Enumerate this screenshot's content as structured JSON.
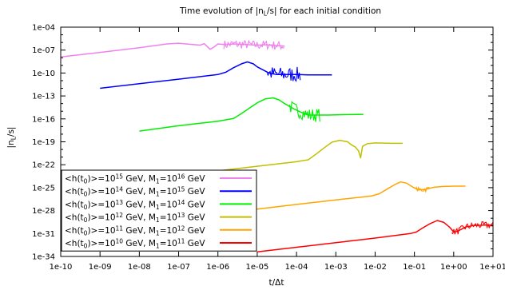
{
  "chart_data": {
    "type": "line",
    "title": "Time evolution of |n_L/s| for each initial condition",
    "title_main": "Time evolution of |n",
    "title_sub": "L",
    "title_rest": "/s| for each initial condition",
    "xlabel": "t/Δt",
    "ylabel_main": "|n",
    "ylabel_sub": "L",
    "ylabel_rest": "/s|",
    "x_scale": "log",
    "y_scale": "log",
    "xlim": [
      1e-10,
      10
    ],
    "ylim": [
      1e-34,
      0.0001
    ],
    "grid": false,
    "legend_position": "bottom-left",
    "x_tick_labels": [
      "1e-10",
      "1e-09",
      "1e-08",
      "1e-07",
      "1e-06",
      "1e-05",
      "1e-04",
      "1e-03",
      "1e-02",
      "1e-01",
      "1e+00",
      "1e+01"
    ],
    "y_tick_labels": [
      "1e-34",
      "1e-31",
      "1e-28",
      "1e-25",
      "1e-22",
      "1e-19",
      "1e-16",
      "1e-13",
      "1e-10",
      "1e-07",
      "1e-04"
    ],
    "series": [
      {
        "legend_parts": [
          "<h(t",
          "0",
          ")>=10",
          "15",
          " GeV, M",
          "1",
          "=10",
          "16",
          " GeV"
        ],
        "color": "#ee82ee",
        "points": [
          [
            -10,
            -7.9
          ],
          [
            -9,
            -7.3
          ],
          [
            -8,
            -6.7
          ],
          [
            -7.3,
            -6.2
          ],
          [
            -7,
            -6.1
          ],
          [
            -6.7,
            -6.25
          ],
          [
            -6.45,
            -6.35
          ],
          [
            -6.35,
            -6.15
          ],
          [
            -6.2,
            -6.9
          ],
          [
            -6.1,
            -6.6
          ],
          [
            -6,
            -6.2
          ],
          [
            -5.8,
            -6.3
          ],
          [
            -5.6,
            -6.2
          ],
          [
            -5.4,
            -6.25
          ],
          [
            -5.2,
            -6.3
          ],
          [
            -5.0,
            -6.35
          ],
          [
            -4.8,
            -6.3
          ],
          [
            -4.6,
            -6.35
          ],
          [
            -4.4,
            -6.45
          ],
          [
            -4.3,
            -6.5
          ]
        ],
        "noise": {
          "start": -5.85,
          "end": -4.3,
          "amplitude": 0.6
        }
      },
      {
        "legend_parts": [
          "<h(t",
          "0",
          ")>=10",
          "14",
          " GeV, M",
          "1",
          "=10",
          "15",
          " GeV"
        ],
        "color": "#0000ff",
        "points": [
          [
            -9,
            -12.0
          ],
          [
            -8,
            -11.4
          ],
          [
            -7,
            -10.8
          ],
          [
            -6,
            -10.2
          ],
          [
            -5.8,
            -9.9
          ],
          [
            -5.6,
            -9.3
          ],
          [
            -5.4,
            -8.8
          ],
          [
            -5.25,
            -8.55
          ],
          [
            -5.1,
            -8.8
          ],
          [
            -5,
            -9.2
          ],
          [
            -4.85,
            -9.6
          ],
          [
            -4.7,
            -10.0
          ],
          [
            -4.5,
            -10.2
          ],
          [
            -4.3,
            -10.2
          ],
          [
            -4,
            -10.2
          ],
          [
            -3.7,
            -10.25
          ],
          [
            -3.4,
            -10.25
          ],
          [
            -3.1,
            -10.25
          ]
        ],
        "noise": {
          "start": -4.75,
          "end": -3.9,
          "amplitude": 1.0
        }
      },
      {
        "legend_parts": [
          "<h(t",
          "0",
          ")>=10",
          "13",
          " GeV, M",
          "1",
          "=10",
          "14",
          " GeV"
        ],
        "color": "#00ee00",
        "points": [
          [
            -8,
            -17.6
          ],
          [
            -7,
            -16.9
          ],
          [
            -6,
            -16.3
          ],
          [
            -5.6,
            -15.95
          ],
          [
            -5.4,
            -15.3
          ],
          [
            -5.2,
            -14.6
          ],
          [
            -5,
            -13.9
          ],
          [
            -4.8,
            -13.4
          ],
          [
            -4.6,
            -13.25
          ],
          [
            -4.45,
            -13.5
          ],
          [
            -4.3,
            -14.0
          ],
          [
            -4.1,
            -14.6
          ],
          [
            -3.9,
            -15.1
          ],
          [
            -3.7,
            -15.5
          ],
          [
            -3.5,
            -15.5
          ],
          [
            -3.2,
            -15.5
          ],
          [
            -2.8,
            -15.45
          ],
          [
            -2.3,
            -15.4
          ]
        ],
        "noise": {
          "start": -4.2,
          "end": -3.4,
          "amplitude": 0.9
        }
      },
      {
        "legend_parts": [
          "<h(t",
          "0",
          ")>=10",
          "12",
          " GeV, M",
          "1",
          "=10",
          "13",
          " GeV"
        ],
        "color": "#c0c000",
        "points": [
          [
            -7,
            -23.4
          ],
          [
            -6,
            -22.8
          ],
          [
            -5,
            -22.2
          ],
          [
            -4,
            -21.6
          ],
          [
            -3.7,
            -21.35
          ],
          [
            -3.5,
            -20.6
          ],
          [
            -3.3,
            -19.8
          ],
          [
            -3.1,
            -19.05
          ],
          [
            -2.9,
            -18.8
          ],
          [
            -2.7,
            -19.0
          ],
          [
            -2.6,
            -19.4
          ],
          [
            -2.5,
            -19.7
          ],
          [
            -2.42,
            -20.2
          ],
          [
            -2.37,
            -21.1
          ],
          [
            -2.32,
            -19.6
          ],
          [
            -2.2,
            -19.25
          ],
          [
            -2,
            -19.15
          ],
          [
            -1.6,
            -19.2
          ],
          [
            -1.3,
            -19.2
          ]
        ],
        "noise": null
      },
      {
        "legend_parts": [
          "<h(t",
          "0",
          ")>=10",
          "11",
          " GeV, M",
          "1",
          "=10",
          "12",
          " GeV"
        ],
        "color": "#ffa500",
        "points": [
          [
            -6,
            -28.4
          ],
          [
            -5,
            -27.8
          ],
          [
            -4,
            -27.2
          ],
          [
            -3,
            -26.6
          ],
          [
            -2.1,
            -26.1
          ],
          [
            -1.9,
            -25.8
          ],
          [
            -1.7,
            -25.2
          ],
          [
            -1.5,
            -24.6
          ],
          [
            -1.35,
            -24.25
          ],
          [
            -1.2,
            -24.4
          ],
          [
            -1.05,
            -24.9
          ],
          [
            -0.9,
            -25.3
          ],
          [
            -0.7,
            -25.2
          ],
          [
            -0.5,
            -24.95
          ],
          [
            -0.3,
            -24.85
          ],
          [
            0,
            -24.8
          ],
          [
            0.3,
            -24.8
          ]
        ],
        "noise": {
          "start": -0.95,
          "end": -0.6,
          "amplitude": 0.35
        }
      },
      {
        "legend_parts": [
          "<h(t",
          "0",
          ")>=10",
          "10",
          " GeV, M",
          "1",
          "=10",
          "11",
          " GeV"
        ],
        "color": "#ff0000",
        "points": [
          [
            -5,
            -33.4
          ],
          [
            -4,
            -32.8
          ],
          [
            -3,
            -32.2
          ],
          [
            -2,
            -31.6
          ],
          [
            -1.1,
            -31.0
          ],
          [
            -0.95,
            -30.8
          ],
          [
            -0.8,
            -30.3
          ],
          [
            -0.6,
            -29.7
          ],
          [
            -0.42,
            -29.3
          ],
          [
            -0.25,
            -29.55
          ],
          [
            -0.1,
            -30.2
          ],
          [
            0,
            -30.8
          ],
          [
            0.1,
            -30.7
          ],
          [
            0.3,
            -30.15
          ],
          [
            0.5,
            -29.95
          ],
          [
            0.8,
            -29.9
          ],
          [
            1.1,
            -29.9
          ],
          [
            1.3,
            -29.9
          ]
        ],
        "noise": {
          "start": -0.05,
          "end": 1.3,
          "amplitude": 0.45
        }
      }
    ]
  }
}
